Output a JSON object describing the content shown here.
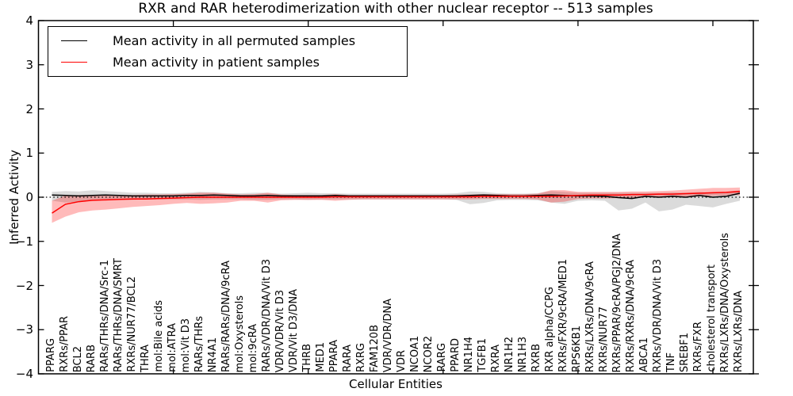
{
  "figure": {
    "title": "RXR and RAR heterodimerization with other nuclear receptor -- 513 samples",
    "xlabel": "Cellular Entities",
    "ylabel": "Inferred Activity"
  },
  "legend": {
    "entries": [
      {
        "label": "Mean activity in all permuted samples",
        "color": "#000000"
      },
      {
        "label": "Mean activity in patient samples",
        "color": "#ff0000"
      }
    ],
    "position": "upper left"
  },
  "chart_data": {
    "type": "line",
    "title": "RXR and RAR heterodimerization with other nuclear receptor -- 513 samples",
    "xlabel": "Cellular Entities",
    "ylabel": "Inferred Activity",
    "ylim": [
      -4,
      4
    ],
    "ytick_values": [
      4,
      3,
      2,
      1,
      0,
      -1,
      -2,
      -3,
      -4
    ],
    "ytick_labels": [
      "4",
      "3",
      "2",
      "1",
      "0",
      "−1",
      "−2",
      "−3",
      "−4"
    ],
    "xticks_top": [
      10,
      20,
      30,
      40,
      50
    ],
    "grid": false,
    "zero_reference_line": 0,
    "legend_position": "upper left",
    "categories": [
      "PPARG",
      "RXRs/PPAR",
      "BCL2",
      "RARB",
      "RARs/THRs/DNA/Src-1",
      "RARs/THRs/DNA/SMRT",
      "RXRs/NUR77/BCL2",
      "THRA",
      "mol:Bile acids",
      "mol:ATRA",
      "mol:Vit D3",
      "RARs/THRs",
      "NR4A1",
      "RARs/RARs/DNA/9cRA",
      "mol:Oxysterols",
      "mol:9cRA",
      "RARs/VDR/DNA/Vit D3",
      "VDR/VDR/Vit D3",
      "VDR/Vit D3/DNA",
      "THRB",
      "MED1",
      "PPARA",
      "RARA",
      "RXRG",
      "FAM120B",
      "VDR/VDR/DNA",
      "VDR",
      "NCOA1",
      "NCOR2",
      "RARG",
      "PPARD",
      "NR1H4",
      "TGFB1",
      "RXRA",
      "NR1H2",
      "NR1H3",
      "RXRB",
      "RXR alpha/CCPG",
      "RXRs/FXR/9cRA/MED1",
      "RPS6KB1",
      "RXRs/LXRs/DNA/9cRA",
      "RXRs/NUR77",
      "RXRs/PPAR/9cRA/PGJ2/DNA",
      "RXRs/RXRs/DNA/9cRA",
      "ABCA1",
      "RXRs/VDR/DNA/Vit D3",
      "TNF",
      "SREBF1",
      "RXRs/FXR",
      "cholesterol transport",
      "RXRs/LXRs/DNA/Oxysterols",
      "RXRs/LXRs/DNA"
    ],
    "series": [
      {
        "name": "Mean activity in all permuted samples",
        "color": "#000000",
        "band_color": "rgba(0,0,0,0.14)",
        "values": [
          0.05,
          0.04,
          0.03,
          0.04,
          0.05,
          0.04,
          0.03,
          0.03,
          0.03,
          0.03,
          0.04,
          0.04,
          0.05,
          0.04,
          0.03,
          0.03,
          0.04,
          0.03,
          0.03,
          0.03,
          0.03,
          0.04,
          0.03,
          0.03,
          0.03,
          0.03,
          0.03,
          0.03,
          0.03,
          0.03,
          0.03,
          0.04,
          0.05,
          0.04,
          0.03,
          0.03,
          0.04,
          0.05,
          0.04,
          0.03,
          0.03,
          0.02,
          -0.01,
          -0.03,
          0.02,
          0.0,
          0.02,
          0.0,
          0.04,
          0.0,
          0.02,
          0.09
        ],
        "band_low": [
          -0.08,
          -0.12,
          -0.1,
          -0.08,
          -0.07,
          -0.06,
          -0.06,
          -0.05,
          -0.05,
          -0.05,
          -0.05,
          -0.06,
          -0.05,
          -0.05,
          -0.05,
          -0.06,
          -0.06,
          -0.05,
          -0.05,
          -0.06,
          -0.05,
          -0.05,
          -0.05,
          -0.05,
          -0.05,
          -0.05,
          -0.05,
          -0.05,
          -0.05,
          -0.05,
          -0.06,
          -0.16,
          -0.13,
          -0.07,
          -0.06,
          -0.06,
          -0.07,
          -0.12,
          -0.15,
          -0.08,
          -0.07,
          -0.08,
          -0.3,
          -0.26,
          -0.12,
          -0.32,
          -0.28,
          -0.17,
          -0.2,
          -0.23,
          -0.15,
          -0.08
        ],
        "band_high": [
          0.12,
          0.14,
          0.13,
          0.16,
          0.14,
          0.12,
          0.1,
          0.1,
          0.09,
          0.09,
          0.1,
          0.12,
          0.11,
          0.09,
          0.09,
          0.1,
          0.1,
          0.08,
          0.09,
          0.1,
          0.09,
          0.09,
          0.08,
          0.08,
          0.08,
          0.08,
          0.08,
          0.08,
          0.08,
          0.08,
          0.09,
          0.13,
          0.12,
          0.09,
          0.08,
          0.08,
          0.09,
          0.14,
          0.12,
          0.1,
          0.1,
          0.1,
          0.1,
          0.1,
          0.1,
          0.1,
          0.11,
          0.1,
          0.12,
          0.1,
          0.12,
          0.16
        ]
      },
      {
        "name": "Mean activity in patient samples",
        "color": "#ff0000",
        "band_color": "rgba(255,0,0,0.27)",
        "values": [
          -0.36,
          -0.16,
          -0.1,
          -0.07,
          -0.06,
          -0.05,
          -0.04,
          -0.04,
          -0.03,
          -0.02,
          -0.01,
          0.0,
          0.0,
          0.0,
          0.0,
          0.0,
          0.0,
          0.0,
          0.0,
          0.0,
          0.0,
          0.01,
          0.01,
          0.01,
          0.01,
          0.01,
          0.01,
          0.01,
          0.01,
          0.01,
          0.01,
          0.01,
          0.02,
          0.02,
          0.02,
          0.02,
          0.02,
          0.02,
          0.03,
          0.04,
          0.05,
          0.05,
          0.05,
          0.06,
          0.06,
          0.07,
          0.07,
          0.08,
          0.09,
          0.1,
          0.11,
          0.13
        ],
        "band_low": [
          -0.58,
          -0.44,
          -0.34,
          -0.3,
          -0.28,
          -0.25,
          -0.22,
          -0.2,
          -0.18,
          -0.15,
          -0.13,
          -0.15,
          -0.14,
          -0.12,
          -0.08,
          -0.08,
          -0.12,
          -0.07,
          -0.06,
          -0.06,
          -0.06,
          -0.08,
          -0.06,
          -0.05,
          -0.05,
          -0.05,
          -0.05,
          -0.05,
          -0.05,
          -0.05,
          -0.05,
          -0.05,
          -0.04,
          -0.04,
          -0.04,
          -0.04,
          -0.05,
          -0.12,
          -0.1,
          -0.04,
          -0.03,
          -0.03,
          -0.02,
          -0.01,
          0.0,
          0.0,
          0.0,
          0.0,
          0.02,
          0.03,
          0.04,
          0.05
        ],
        "band_high": [
          -0.08,
          0.04,
          0.05,
          0.05,
          0.05,
          0.05,
          0.05,
          0.06,
          0.06,
          0.07,
          0.08,
          0.1,
          0.1,
          0.08,
          0.06,
          0.07,
          0.1,
          0.06,
          0.05,
          0.05,
          0.05,
          0.07,
          0.05,
          0.05,
          0.05,
          0.05,
          0.05,
          0.05,
          0.05,
          0.05,
          0.06,
          0.06,
          0.07,
          0.07,
          0.07,
          0.07,
          0.08,
          0.16,
          0.16,
          0.12,
          0.12,
          0.12,
          0.12,
          0.13,
          0.13,
          0.14,
          0.15,
          0.17,
          0.19,
          0.21,
          0.21,
          0.22
        ]
      }
    ]
  }
}
